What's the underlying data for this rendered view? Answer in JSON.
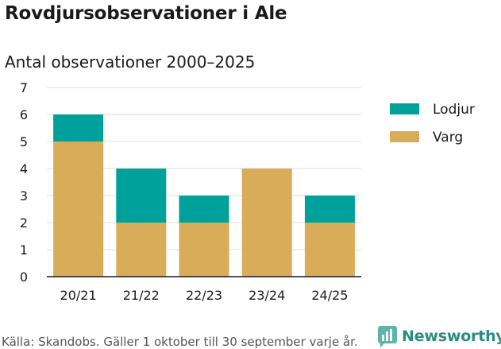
{
  "page": {
    "title": "Rovdjursobservationer i Ale",
    "subtitle": "Antal observationer 2000–2025",
    "footer": "Källa: Skandobs. Gäller 1 oktober till 30 september varje år.",
    "brand": "Newsworthy",
    "brand_icon": "bar-chart-logo-icon",
    "brand_color": "#2a8c83"
  },
  "chart_data": {
    "type": "bar",
    "stacked": true,
    "categories": [
      "20/21",
      "21/22",
      "22/23",
      "23/24",
      "24/25"
    ],
    "series": [
      {
        "name": "Varg",
        "color": "#d9ac59",
        "values": [
          5,
          2,
          2,
          4,
          2
        ]
      },
      {
        "name": "Lodjur",
        "color": "#00a19a",
        "values": [
          1,
          2,
          1,
          0,
          1
        ]
      }
    ],
    "legend_order": [
      "Lodjur",
      "Varg"
    ],
    "legend_position": "right",
    "ylim": [
      0,
      7
    ],
    "yticks": [
      0,
      1,
      2,
      3,
      4,
      5,
      6,
      7
    ],
    "grid": true
  }
}
